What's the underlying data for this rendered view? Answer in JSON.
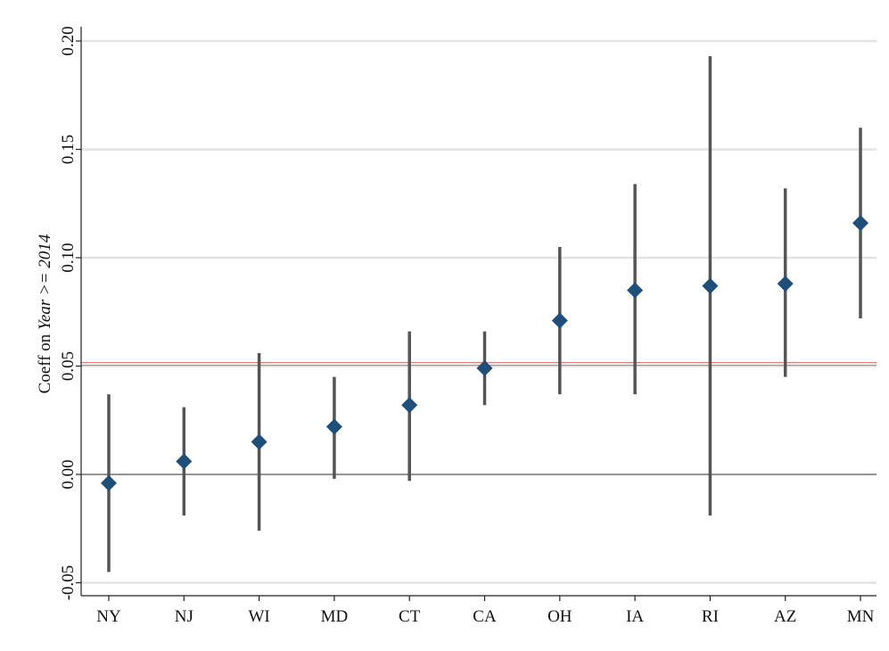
{
  "chart_data": {
    "type": "scatter",
    "categories": [
      "NY",
      "NJ",
      "WI",
      "MD",
      "CT",
      "CA",
      "OH",
      "IA",
      "RI",
      "AZ",
      "MN"
    ],
    "estimates": [
      -0.004,
      0.006,
      0.015,
      0.022,
      0.032,
      0.049,
      0.071,
      0.085,
      0.087,
      0.088,
      0.116
    ],
    "ci_lower": [
      -0.045,
      -0.019,
      -0.026,
      -0.002,
      -0.003,
      0.032,
      0.037,
      0.037,
      -0.019,
      0.045,
      0.072
    ],
    "ci_upper": [
      0.037,
      0.031,
      0.056,
      0.045,
      0.066,
      0.066,
      0.105,
      0.134,
      0.193,
      0.132,
      0.16
    ],
    "reference_line": 0.051,
    "ylabel": {
      "prefix": "Coeff on ",
      "italic": "Year >= 2014"
    },
    "xlabel": "",
    "yticks": [
      -0.05,
      0.0,
      0.05,
      0.1,
      0.15,
      0.2
    ],
    "ytick_labels": [
      "-0.05",
      "0.00",
      "0.05",
      "0.10",
      "0.15",
      "0.20"
    ],
    "ylim": [
      -0.055,
      0.2
    ],
    "grid": true,
    "legend": "none",
    "colors": {
      "marker": "#1f4e79",
      "error_bar": "#555555",
      "reference_line": "#e06666",
      "zero_line": "#555555",
      "grid": "#e3e3e3",
      "axis": "#222222"
    }
  }
}
